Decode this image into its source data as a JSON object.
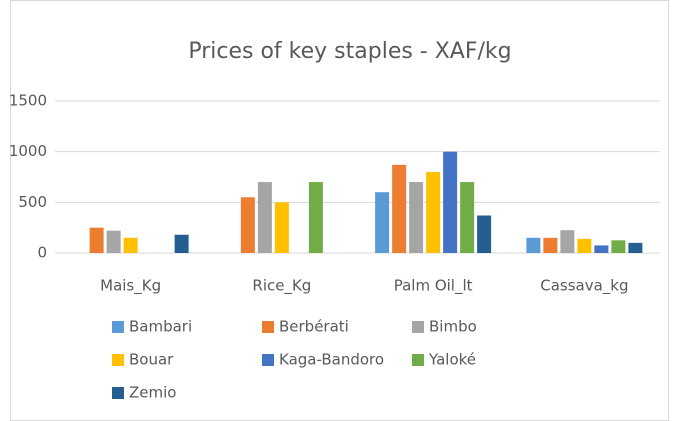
{
  "chart_data": {
    "type": "bar",
    "title": "Prices of key staples - XAF/kg",
    "categories": [
      "Mais_Kg",
      "Rice_Kg",
      "Palm Oil_lt",
      "Cassava_kg"
    ],
    "series": [
      {
        "name": "Bambari",
        "color": "#5B9BD5",
        "values": [
          null,
          null,
          600,
          150
        ]
      },
      {
        "name": "Berbérati",
        "color": "#ED7D31",
        "values": [
          250,
          550,
          870,
          150
        ]
      },
      {
        "name": "Bimbo",
        "color": "#A5A5A5",
        "values": [
          220,
          700,
          700,
          225
        ]
      },
      {
        "name": "Bouar",
        "color": "#FFC000",
        "values": [
          150,
          500,
          800,
          140
        ]
      },
      {
        "name": "Kaga-Bandoro",
        "color": "#4472C4",
        "values": [
          null,
          null,
          1000,
          75
        ]
      },
      {
        "name": "Yaloké",
        "color": "#70AD47",
        "values": [
          null,
          700,
          700,
          125
        ]
      },
      {
        "name": "Zemio",
        "color": "#255E91",
        "values": [
          180,
          null,
          370,
          100
        ]
      }
    ],
    "ylim": [
      0,
      1500
    ],
    "yticks": [
      0,
      500,
      1000,
      1500
    ],
    "grid": true,
    "legend": "bottom"
  }
}
